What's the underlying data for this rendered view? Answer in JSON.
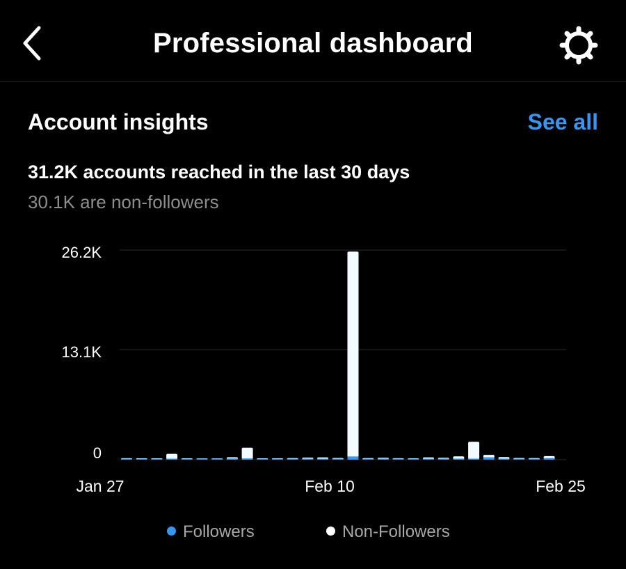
{
  "header": {
    "title": "Professional dashboard",
    "back_icon": "chevron-left-icon",
    "settings_icon": "gear-icon"
  },
  "insights": {
    "heading": "Account insights",
    "see_all": "See all",
    "reach_text": "31.2K accounts reached in the last 30 days",
    "nonfollower_text": "30.1K are non-followers"
  },
  "colors": {
    "background": "#000000",
    "accent": "#3797f0",
    "followers": "#3797f0",
    "non_followers": "#f2fbff",
    "muted_text": "#8e8e8e"
  },
  "chart_data": {
    "type": "bar",
    "stacked": true,
    "ytick_labels": [
      "0",
      "13.1K",
      "26.2K"
    ],
    "ylim": [
      0,
      26200
    ],
    "xtick_labels": [
      "Jan 27",
      "Feb 10",
      "Feb 25"
    ],
    "grid": true,
    "legend_position": "bottom",
    "series": [
      {
        "name": "Followers",
        "color": "#3797f0",
        "values": [
          80,
          60,
          50,
          100,
          60,
          50,
          40,
          150,
          150,
          40,
          40,
          60,
          100,
          100,
          100,
          400,
          100,
          100,
          50,
          40,
          120,
          100,
          80,
          100,
          300,
          100,
          100,
          60,
          200
        ]
      },
      {
        "name": "Non-Followers",
        "color": "#f2fbff",
        "values": [
          50,
          40,
          40,
          600,
          40,
          30,
          30,
          150,
          1350,
          40,
          40,
          60,
          120,
          150,
          80,
          25600,
          60,
          100,
          50,
          40,
          150,
          100,
          280,
          2100,
          300,
          200,
          80,
          60,
          250
        ]
      }
    ]
  }
}
